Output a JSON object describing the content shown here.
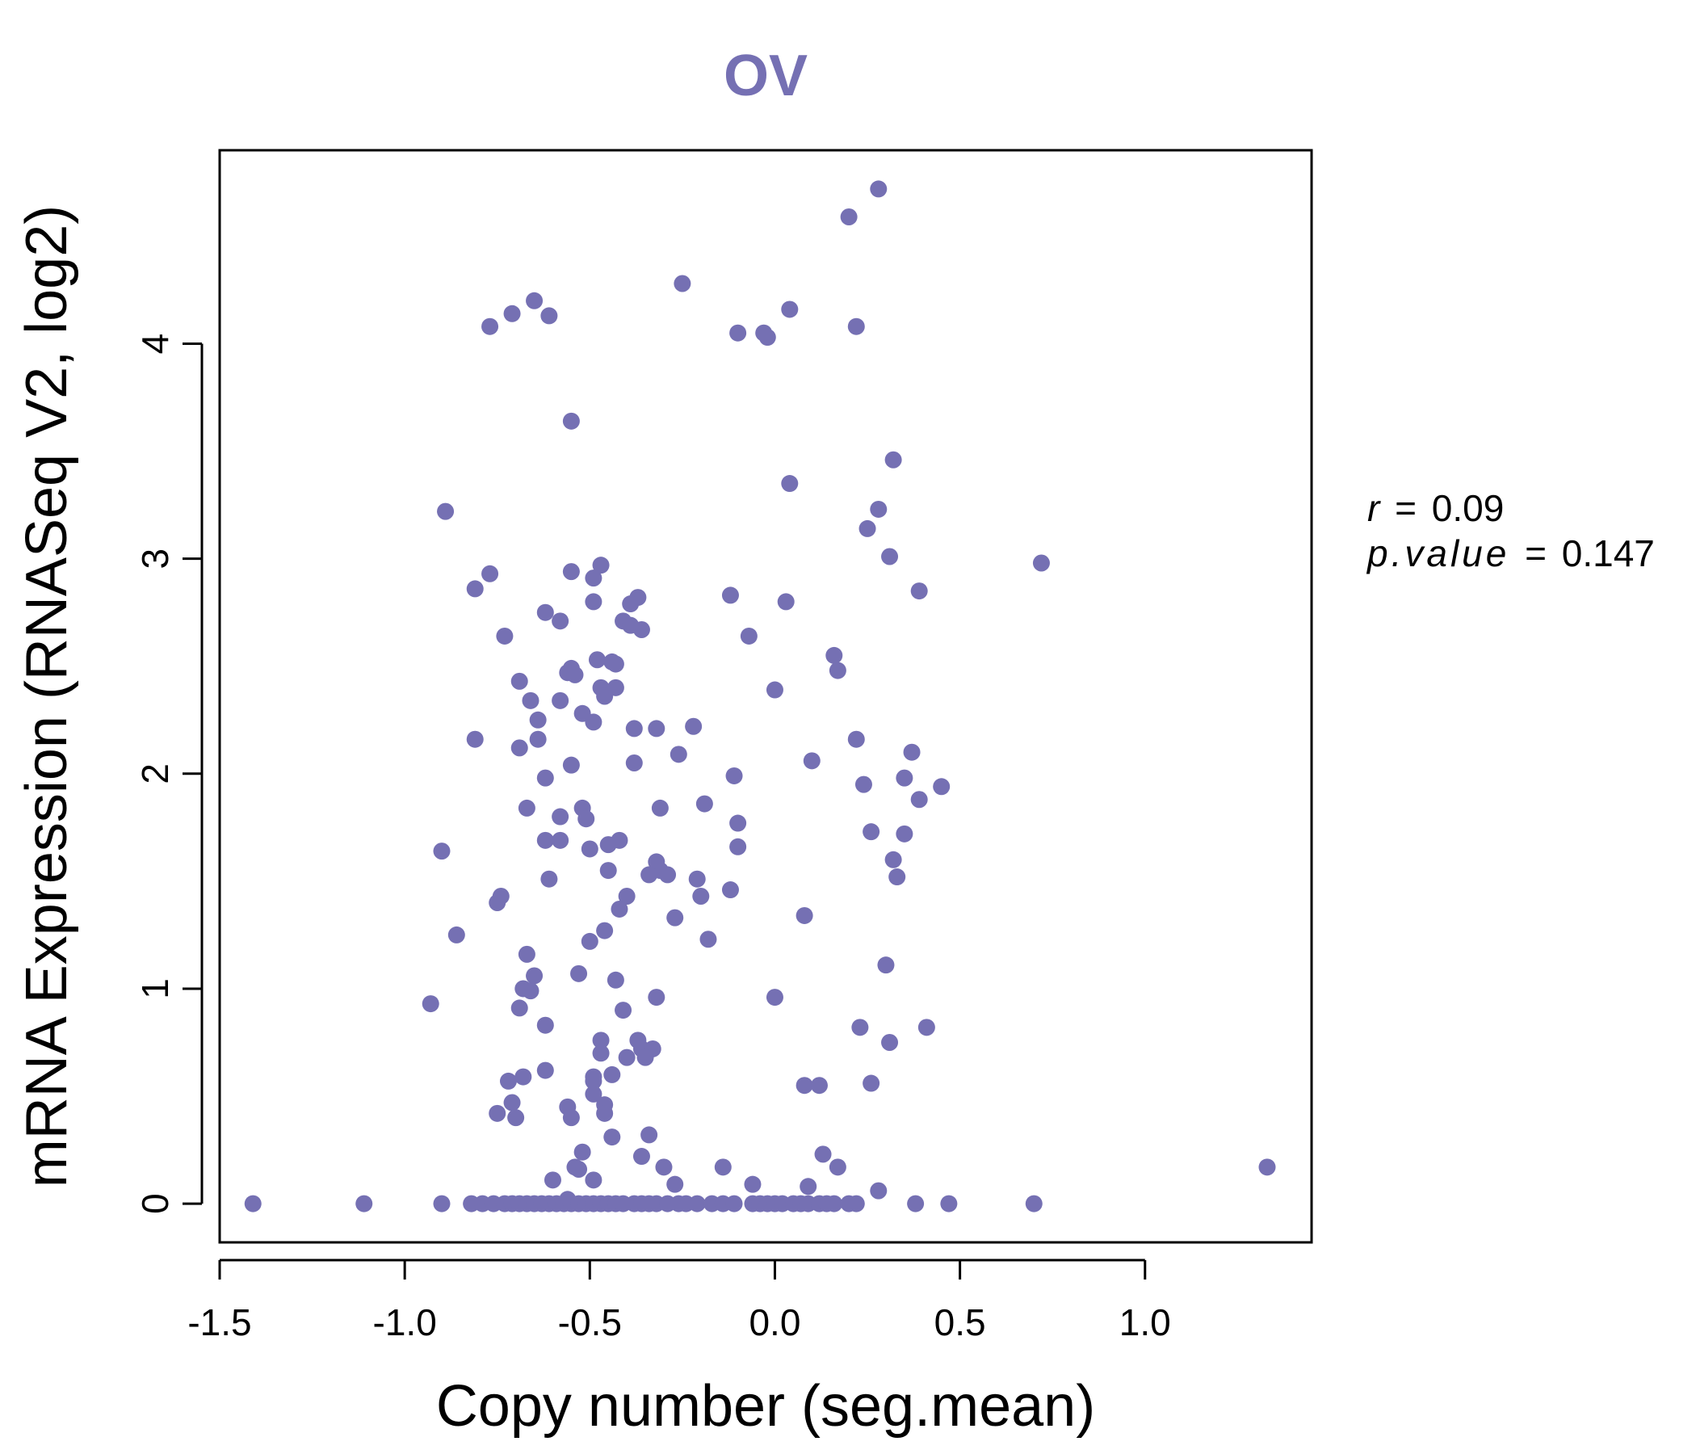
{
  "chart_data": {
    "type": "scatter",
    "title": "OV",
    "xlabel": "Copy number (seg.mean)",
    "ylabel": "mRNA Expression (RNASeq V2, log2)",
    "xlim": [
      -1.5,
      1.45
    ],
    "ylim": [
      -0.18,
      4.9
    ],
    "x_ticks": [
      -1.5,
      -1.0,
      -0.5,
      0.0,
      0.5,
      1.0
    ],
    "x_tick_labels": [
      "-1.5",
      "-1.0",
      "-0.5",
      "0.0",
      "0.5",
      "1.0"
    ],
    "y_ticks": [
      0,
      1,
      2,
      3,
      4
    ],
    "y_tick_labels": [
      "0",
      "1",
      "2",
      "3",
      "4"
    ],
    "grid": false,
    "point_color": "#7570b3",
    "title_color": "#7570b3",
    "stats": {
      "r_label": "r",
      "r_value": "0.09",
      "p_label": "p.value",
      "p_value": "0.147"
    },
    "points": [
      {
        "x": 0.28,
        "y": 4.72
      },
      {
        "x": 0.2,
        "y": 4.59
      },
      {
        "x": -0.25,
        "y": 4.28
      },
      {
        "x": -0.65,
        "y": 4.2
      },
      {
        "x": -0.71,
        "y": 4.14
      },
      {
        "x": -0.61,
        "y": 4.13
      },
      {
        "x": -0.77,
        "y": 4.08
      },
      {
        "x": 0.04,
        "y": 4.16
      },
      {
        "x": 0.22,
        "y": 4.08
      },
      {
        "x": -0.1,
        "y": 4.05
      },
      {
        "x": -0.03,
        "y": 4.05
      },
      {
        "x": -0.02,
        "y": 4.03
      },
      {
        "x": -0.55,
        "y": 3.64
      },
      {
        "x": 0.32,
        "y": 3.46
      },
      {
        "x": 0.04,
        "y": 3.35
      },
      {
        "x": -0.89,
        "y": 3.22
      },
      {
        "x": 0.28,
        "y": 3.23
      },
      {
        "x": 0.25,
        "y": 3.14
      },
      {
        "x": 0.31,
        "y": 3.01
      },
      {
        "x": 0.72,
        "y": 2.98
      },
      {
        "x": -0.55,
        "y": 2.94
      },
      {
        "x": -0.47,
        "y": 2.97
      },
      {
        "x": -0.49,
        "y": 2.91
      },
      {
        "x": -0.77,
        "y": 2.93
      },
      {
        "x": -0.81,
        "y": 2.86
      },
      {
        "x": 0.39,
        "y": 2.85
      },
      {
        "x": -0.12,
        "y": 2.83
      },
      {
        "x": -0.37,
        "y": 2.82
      },
      {
        "x": -0.39,
        "y": 2.79
      },
      {
        "x": -0.49,
        "y": 2.8
      },
      {
        "x": 0.03,
        "y": 2.8
      },
      {
        "x": -0.62,
        "y": 2.75
      },
      {
        "x": -0.58,
        "y": 2.71
      },
      {
        "x": -0.41,
        "y": 2.71
      },
      {
        "x": -0.39,
        "y": 2.69
      },
      {
        "x": -0.36,
        "y": 2.67
      },
      {
        "x": -0.73,
        "y": 2.64
      },
      {
        "x": -0.07,
        "y": 2.64
      },
      {
        "x": 0.16,
        "y": 2.55
      },
      {
        "x": -0.48,
        "y": 2.53
      },
      {
        "x": -0.44,
        "y": 2.52
      },
      {
        "x": -0.43,
        "y": 2.51
      },
      {
        "x": -0.55,
        "y": 2.49
      },
      {
        "x": -0.56,
        "y": 2.47
      },
      {
        "x": 0.17,
        "y": 2.48
      },
      {
        "x": -0.54,
        "y": 2.46
      },
      {
        "x": -0.69,
        "y": 2.43
      },
      {
        "x": -0.47,
        "y": 2.4
      },
      {
        "x": -0.43,
        "y": 2.4
      },
      {
        "x": 0.0,
        "y": 2.39
      },
      {
        "x": -0.46,
        "y": 2.36
      },
      {
        "x": -0.66,
        "y": 2.34
      },
      {
        "x": -0.58,
        "y": 2.34
      },
      {
        "x": -0.52,
        "y": 2.28
      },
      {
        "x": -0.64,
        "y": 2.25
      },
      {
        "x": -0.49,
        "y": 2.24
      },
      {
        "x": -0.38,
        "y": 2.21
      },
      {
        "x": -0.32,
        "y": 2.21
      },
      {
        "x": -0.22,
        "y": 2.22
      },
      {
        "x": -0.81,
        "y": 2.16
      },
      {
        "x": -0.64,
        "y": 2.16
      },
      {
        "x": 0.22,
        "y": 2.16
      },
      {
        "x": -0.69,
        "y": 2.12
      },
      {
        "x": 0.37,
        "y": 2.1
      },
      {
        "x": -0.26,
        "y": 2.09
      },
      {
        "x": 0.1,
        "y": 2.06
      },
      {
        "x": -0.38,
        "y": 2.05
      },
      {
        "x": -0.55,
        "y": 2.04
      },
      {
        "x": -0.62,
        "y": 1.98
      },
      {
        "x": -0.11,
        "y": 1.99
      },
      {
        "x": 0.35,
        "y": 1.98
      },
      {
        "x": 0.24,
        "y": 1.95
      },
      {
        "x": 0.45,
        "y": 1.94
      },
      {
        "x": 0.39,
        "y": 1.88
      },
      {
        "x": -0.19,
        "y": 1.86
      },
      {
        "x": -0.67,
        "y": 1.84
      },
      {
        "x": -0.52,
        "y": 1.84
      },
      {
        "x": -0.31,
        "y": 1.84
      },
      {
        "x": -0.58,
        "y": 1.8
      },
      {
        "x": -0.51,
        "y": 1.79
      },
      {
        "x": -0.1,
        "y": 1.77
      },
      {
        "x": 0.26,
        "y": 1.73
      },
      {
        "x": 0.35,
        "y": 1.72
      },
      {
        "x": -0.62,
        "y": 1.69
      },
      {
        "x": -0.58,
        "y": 1.69
      },
      {
        "x": -0.42,
        "y": 1.69
      },
      {
        "x": -0.45,
        "y": 1.67
      },
      {
        "x": -0.1,
        "y": 1.66
      },
      {
        "x": -0.5,
        "y": 1.65
      },
      {
        "x": -0.9,
        "y": 1.64
      },
      {
        "x": 0.32,
        "y": 1.6
      },
      {
        "x": -0.32,
        "y": 1.59
      },
      {
        "x": -0.45,
        "y": 1.55
      },
      {
        "x": -0.31,
        "y": 1.55
      },
      {
        "x": -0.34,
        "y": 1.53
      },
      {
        "x": -0.29,
        "y": 1.53
      },
      {
        "x": -0.21,
        "y": 1.51
      },
      {
        "x": -0.61,
        "y": 1.51
      },
      {
        "x": 0.33,
        "y": 1.52
      },
      {
        "x": -0.12,
        "y": 1.46
      },
      {
        "x": -0.74,
        "y": 1.43
      },
      {
        "x": -0.4,
        "y": 1.43
      },
      {
        "x": -0.2,
        "y": 1.43
      },
      {
        "x": -0.75,
        "y": 1.4
      },
      {
        "x": -0.42,
        "y": 1.37
      },
      {
        "x": 0.08,
        "y": 1.34
      },
      {
        "x": -0.27,
        "y": 1.33
      },
      {
        "x": -0.46,
        "y": 1.27
      },
      {
        "x": -0.86,
        "y": 1.25
      },
      {
        "x": -0.5,
        "y": 1.22
      },
      {
        "x": -0.18,
        "y": 1.23
      },
      {
        "x": -0.67,
        "y": 1.16
      },
      {
        "x": 0.3,
        "y": 1.11
      },
      {
        "x": -0.53,
        "y": 1.07
      },
      {
        "x": -0.65,
        "y": 1.06
      },
      {
        "x": -0.43,
        "y": 1.04
      },
      {
        "x": -0.68,
        "y": 1.0
      },
      {
        "x": -0.66,
        "y": 0.99
      },
      {
        "x": -0.32,
        "y": 0.96
      },
      {
        "x": 0.0,
        "y": 0.96
      },
      {
        "x": -0.93,
        "y": 0.93
      },
      {
        "x": -0.69,
        "y": 0.91
      },
      {
        "x": -0.41,
        "y": 0.9
      },
      {
        "x": -0.62,
        "y": 0.83
      },
      {
        "x": 0.23,
        "y": 0.82
      },
      {
        "x": 0.41,
        "y": 0.82
      },
      {
        "x": -0.47,
        "y": 0.76
      },
      {
        "x": -0.37,
        "y": 0.76
      },
      {
        "x": 0.31,
        "y": 0.75
      },
      {
        "x": -0.36,
        "y": 0.72
      },
      {
        "x": -0.33,
        "y": 0.72
      },
      {
        "x": -0.47,
        "y": 0.7
      },
      {
        "x": -0.4,
        "y": 0.68
      },
      {
        "x": -0.35,
        "y": 0.68
      },
      {
        "x": -0.62,
        "y": 0.62
      },
      {
        "x": -0.68,
        "y": 0.59
      },
      {
        "x": -0.49,
        "y": 0.59
      },
      {
        "x": -0.44,
        "y": 0.6
      },
      {
        "x": -0.72,
        "y": 0.57
      },
      {
        "x": -0.49,
        "y": 0.57
      },
      {
        "x": 0.26,
        "y": 0.56
      },
      {
        "x": 0.08,
        "y": 0.55
      },
      {
        "x": 0.12,
        "y": 0.55
      },
      {
        "x": -0.49,
        "y": 0.51
      },
      {
        "x": -0.71,
        "y": 0.47
      },
      {
        "x": -0.56,
        "y": 0.45
      },
      {
        "x": -0.46,
        "y": 0.46
      },
      {
        "x": -0.75,
        "y": 0.42
      },
      {
        "x": -0.7,
        "y": 0.4
      },
      {
        "x": -0.55,
        "y": 0.4
      },
      {
        "x": -0.46,
        "y": 0.42
      },
      {
        "x": -0.34,
        "y": 0.32
      },
      {
        "x": -0.44,
        "y": 0.31
      },
      {
        "x": -0.52,
        "y": 0.24
      },
      {
        "x": 0.13,
        "y": 0.23
      },
      {
        "x": -0.36,
        "y": 0.22
      },
      {
        "x": -0.54,
        "y": 0.17
      },
      {
        "x": -0.3,
        "y": 0.17
      },
      {
        "x": -0.14,
        "y": 0.17
      },
      {
        "x": 0.17,
        "y": 0.17
      },
      {
        "x": 1.33,
        "y": 0.17
      },
      {
        "x": -0.53,
        "y": 0.16
      },
      {
        "x": -0.6,
        "y": 0.11
      },
      {
        "x": -0.49,
        "y": 0.11
      },
      {
        "x": -0.27,
        "y": 0.09
      },
      {
        "x": -0.06,
        "y": 0.09
      },
      {
        "x": 0.09,
        "y": 0.08
      },
      {
        "x": 0.28,
        "y": 0.06
      },
      {
        "x": -0.56,
        "y": 0.02
      },
      {
        "x": -1.41,
        "y": 0.0
      },
      {
        "x": -1.11,
        "y": 0.0
      },
      {
        "x": -0.9,
        "y": 0.0
      },
      {
        "x": -0.82,
        "y": 0.0
      },
      {
        "x": -0.79,
        "y": 0.0
      },
      {
        "x": -0.76,
        "y": 0.0
      },
      {
        "x": -0.73,
        "y": 0.0
      },
      {
        "x": -0.71,
        "y": 0.0
      },
      {
        "x": -0.69,
        "y": 0.0
      },
      {
        "x": -0.67,
        "y": 0.0
      },
      {
        "x": -0.65,
        "y": 0.0
      },
      {
        "x": -0.63,
        "y": 0.0
      },
      {
        "x": -0.61,
        "y": 0.0
      },
      {
        "x": -0.59,
        "y": 0.0
      },
      {
        "x": -0.57,
        "y": 0.0
      },
      {
        "x": -0.55,
        "y": 0.0
      },
      {
        "x": -0.53,
        "y": 0.0
      },
      {
        "x": -0.51,
        "y": 0.0
      },
      {
        "x": -0.49,
        "y": 0.0
      },
      {
        "x": -0.47,
        "y": 0.0
      },
      {
        "x": -0.45,
        "y": 0.0
      },
      {
        "x": -0.43,
        "y": 0.0
      },
      {
        "x": -0.41,
        "y": 0.0
      },
      {
        "x": -0.38,
        "y": 0.0
      },
      {
        "x": -0.36,
        "y": 0.0
      },
      {
        "x": -0.34,
        "y": 0.0
      },
      {
        "x": -0.32,
        "y": 0.0
      },
      {
        "x": -0.29,
        "y": 0.0
      },
      {
        "x": -0.26,
        "y": 0.0
      },
      {
        "x": -0.24,
        "y": 0.0
      },
      {
        "x": -0.21,
        "y": 0.0
      },
      {
        "x": -0.17,
        "y": 0.0
      },
      {
        "x": -0.14,
        "y": 0.0
      },
      {
        "x": -0.11,
        "y": 0.0
      },
      {
        "x": -0.06,
        "y": 0.0
      },
      {
        "x": -0.04,
        "y": 0.0
      },
      {
        "x": -0.02,
        "y": 0.0
      },
      {
        "x": 0.0,
        "y": 0.0
      },
      {
        "x": 0.02,
        "y": 0.0
      },
      {
        "x": 0.05,
        "y": 0.0
      },
      {
        "x": 0.07,
        "y": 0.0
      },
      {
        "x": 0.09,
        "y": 0.0
      },
      {
        "x": 0.12,
        "y": 0.0
      },
      {
        "x": 0.14,
        "y": 0.0
      },
      {
        "x": 0.16,
        "y": 0.0
      },
      {
        "x": 0.2,
        "y": 0.0
      },
      {
        "x": 0.22,
        "y": 0.0
      },
      {
        "x": 0.38,
        "y": 0.0
      },
      {
        "x": 0.47,
        "y": 0.0
      },
      {
        "x": 0.7,
        "y": 0.0
      }
    ]
  }
}
